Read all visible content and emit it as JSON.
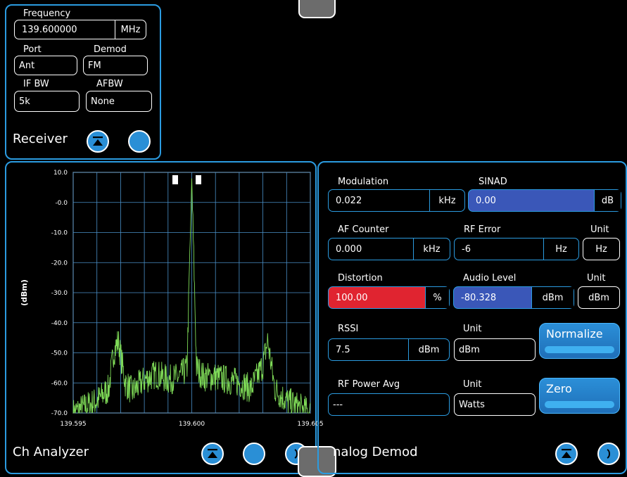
{
  "receiver": {
    "title": "Receiver",
    "frequency_label": "Frequency",
    "frequency_value": "139.600000",
    "frequency_unit": "MHz",
    "port_label": "Port",
    "port_value": "Ant",
    "demod_label": "Demod",
    "demod_value": "FM",
    "ifbw_label": "IF BW",
    "ifbw_value": "5k",
    "afbw_label": "AFBW",
    "afbw_value": "None"
  },
  "ch_analyzer": {
    "title": "Ch Analyzer"
  },
  "analog_demod": {
    "title": "nalog Demod",
    "modulation_label": "Modulation",
    "modulation_value": "0.022",
    "modulation_unit": "kHz",
    "sinad_label": "SINAD",
    "sinad_value": "0.00",
    "sinad_unit": "dB",
    "af_counter_label": "AF Counter",
    "af_counter_value": "0.000",
    "af_counter_unit": "kHz",
    "rf_error_label": "RF Error",
    "rf_error_value": "-6",
    "rf_error_unit": "Hz",
    "unit1_label": "Unit",
    "unit1_value": "Hz",
    "distortion_label": "Distortion",
    "distortion_value": "100.00",
    "distortion_unit": "%",
    "audio_level_label": "Audio Level",
    "audio_level_value": "-80.328",
    "audio_level_unit": "dBm",
    "unit2_label": "Unit",
    "unit2_value": "dBm",
    "rssi_label": "RSSI",
    "rssi_value": "7.5",
    "rssi_unit": "dBm",
    "unit3_label": "Unit",
    "unit3_value": "dBm",
    "normalize_label": "Normalize",
    "rf_power_label": "RF Power Avg",
    "rf_power_value": "---",
    "unit4_label": "Unit",
    "unit4_value": "Watts",
    "zero_label": "Zero"
  },
  "colors": {
    "accent": "#2b9be0",
    "sinad_fill": "#3a57b8",
    "distortion_fill": "#e02430",
    "trace": "#7ed957",
    "grid": "#4a90c8"
  },
  "icons": [
    "collapse-icon",
    "circle-button-icon",
    "menu-icon"
  ],
  "chart_data": {
    "type": "line",
    "ylabel": "(dBm)",
    "xlabel": "",
    "ylim": [
      -70,
      10
    ],
    "xlim": [
      139.595,
      139.605
    ],
    "yticks": [
      "10.0",
      "-0.0",
      "-10.0",
      "-20.0",
      "-30.0",
      "-40.0",
      "-50.0",
      "-60.0",
      "-70.0"
    ],
    "xticks": [
      "139.595",
      "139.600",
      "139.605"
    ],
    "grid": true,
    "series": [
      {
        "x": [
          139.595,
          139.5955,
          139.596,
          139.5965,
          139.5967,
          139.5969,
          139.5972,
          139.5975,
          139.598,
          139.5985,
          139.599,
          139.5995,
          139.5998,
          139.6,
          139.6002,
          139.6005,
          139.601,
          139.6015,
          139.602,
          139.6025,
          139.603,
          139.6032,
          139.6035,
          139.604,
          139.6045,
          139.605
        ],
        "values": [
          -70,
          -68,
          -66,
          -62,
          -50,
          -46,
          -60,
          -63,
          -59,
          -57,
          -59,
          -58,
          -55,
          8,
          -55,
          -58,
          -58,
          -59,
          -60,
          -62,
          -54,
          -46,
          -62,
          -66,
          -68,
          -70
        ]
      }
    ]
  }
}
